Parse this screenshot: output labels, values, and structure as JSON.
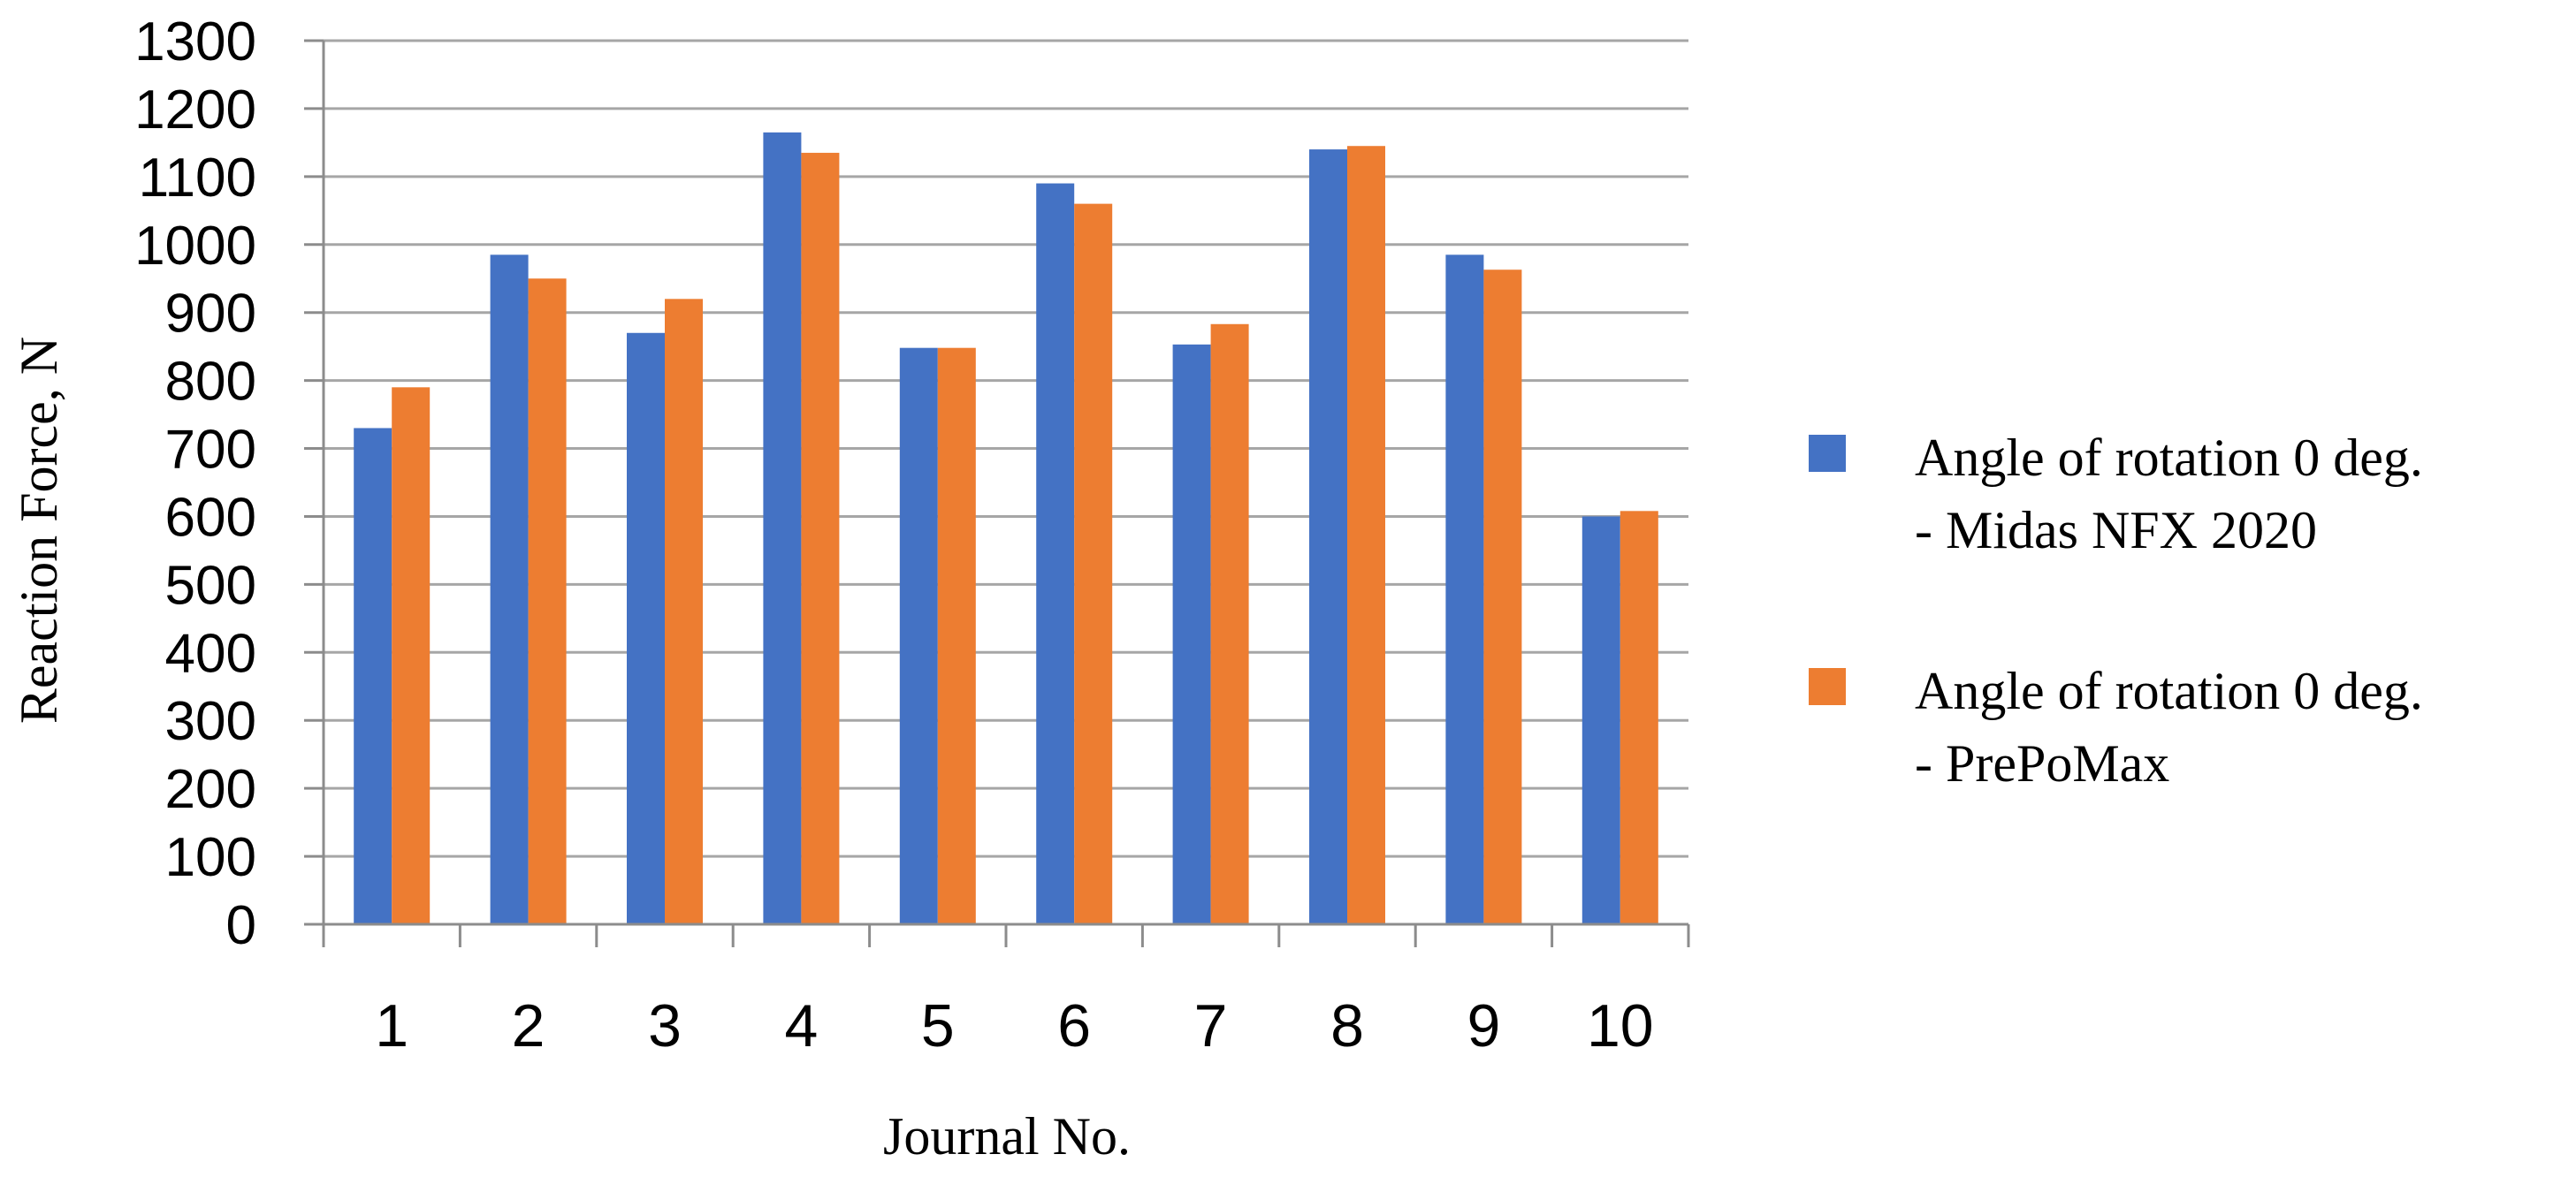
{
  "chart_data": {
    "type": "bar",
    "title": "",
    "xlabel": "Journal No.",
    "ylabel": "Reaction Force, N",
    "categories": [
      "1",
      "2",
      "3",
      "4",
      "5",
      "6",
      "7",
      "8",
      "9",
      "10"
    ],
    "ylim": [
      0,
      1300
    ],
    "yticks": [
      0,
      100,
      200,
      300,
      400,
      500,
      600,
      700,
      800,
      900,
      1000,
      1100,
      1200,
      1300
    ],
    "grid": "horizontal",
    "legend_position": "right",
    "series": [
      {
        "name": "Angle of rotation 0 deg. - Midas NFX 2020",
        "legend_lines": [
          "Angle of rotation 0 deg.",
          "- Midas NFX 2020"
        ],
        "color": "#4472C4",
        "values": [
          730,
          985,
          870,
          1165,
          848,
          1090,
          853,
          1140,
          985,
          600
        ]
      },
      {
        "name": "Angle of rotation 0 deg. - PrePoMax",
        "legend_lines": [
          "Angle of rotation 0 deg.",
          "- PrePoMax"
        ],
        "color": "#ED7D31",
        "values": [
          790,
          950,
          920,
          1135,
          848,
          1060,
          883,
          1145,
          963,
          608
        ]
      }
    ],
    "gridline_color": "#A6A6A6",
    "axis_color": "#8C8C8C"
  }
}
